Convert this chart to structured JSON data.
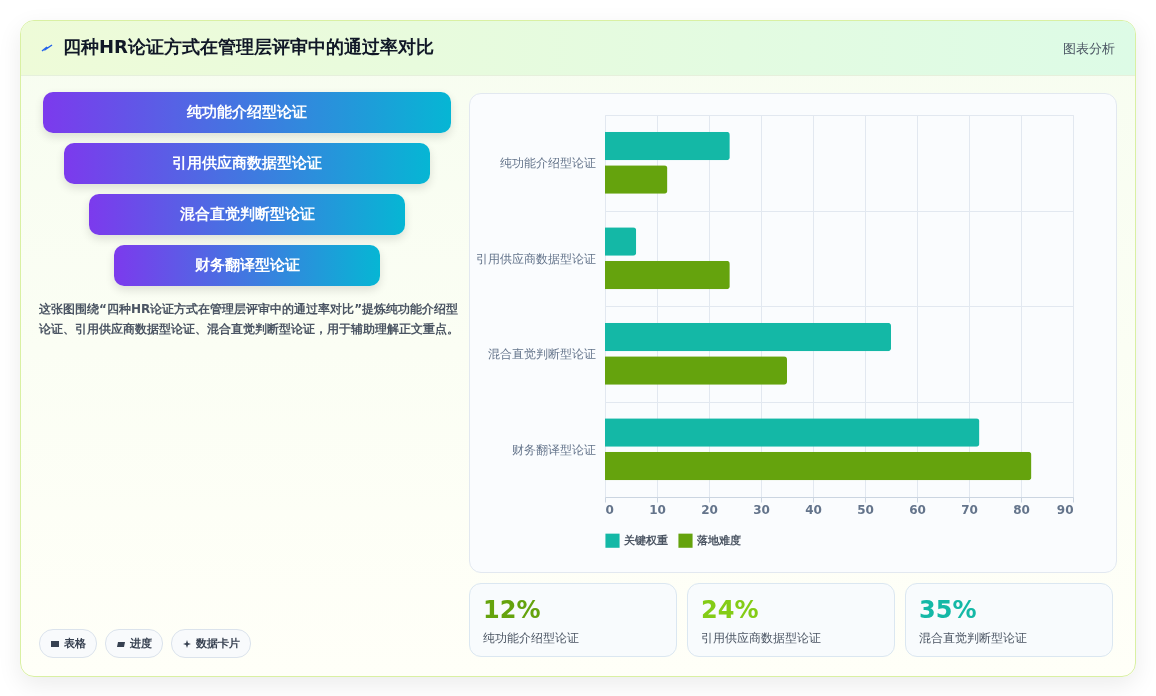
{
  "chart_data": [
    {
      "type": "bar",
      "orientation": "horizontal",
      "title": "四种HR论证方式在管理层评审中的通过率对比",
      "categories": [
        "纯功能介绍型论证",
        "引用供应商数据型论证",
        "混合直觉判断型论证",
        "财务翻译型论证"
      ],
      "series": [
        {
          "name": "关键权重",
          "color": "#14b8a6",
          "values": [
            24,
            6,
            55,
            72
          ]
        },
        {
          "name": "落地难度",
          "color": "#65a30d",
          "values": [
            12,
            24,
            35,
            82
          ]
        }
      ],
      "xlim": [
        0,
        90
      ],
      "xticks": [
        0,
        10,
        20,
        30,
        40,
        50,
        60,
        70,
        80,
        90
      ],
      "grid": true,
      "legend": "bottom",
      "annotations": [
        "图表分析",
        "这张图围绕“四种HR论证方式在管理层评审中的通过率对比”提炼纯功能介绍型论证、引用供应商数据型论证、混合直觉判断型论证，用于辅助理解正文重点。"
      ]
    },
    {
      "type": "other",
      "annotations": [
        "纯功能介绍型论证",
        "引用供应商数据型论证",
        "混合直觉判断型论证",
        "财务翻译型论证"
      ]
    },
    {
      "type": "other",
      "annotations": [
        "12%",
        "纯功能介绍型论证",
        "24%",
        "引用供应商数据型论证",
        "35%",
        "混合直觉判断型论证"
      ]
    },
    {
      "type": "other",
      "annotations": [
        "表格",
        "进度",
        "数据卡片"
      ]
    }
  ]
}
